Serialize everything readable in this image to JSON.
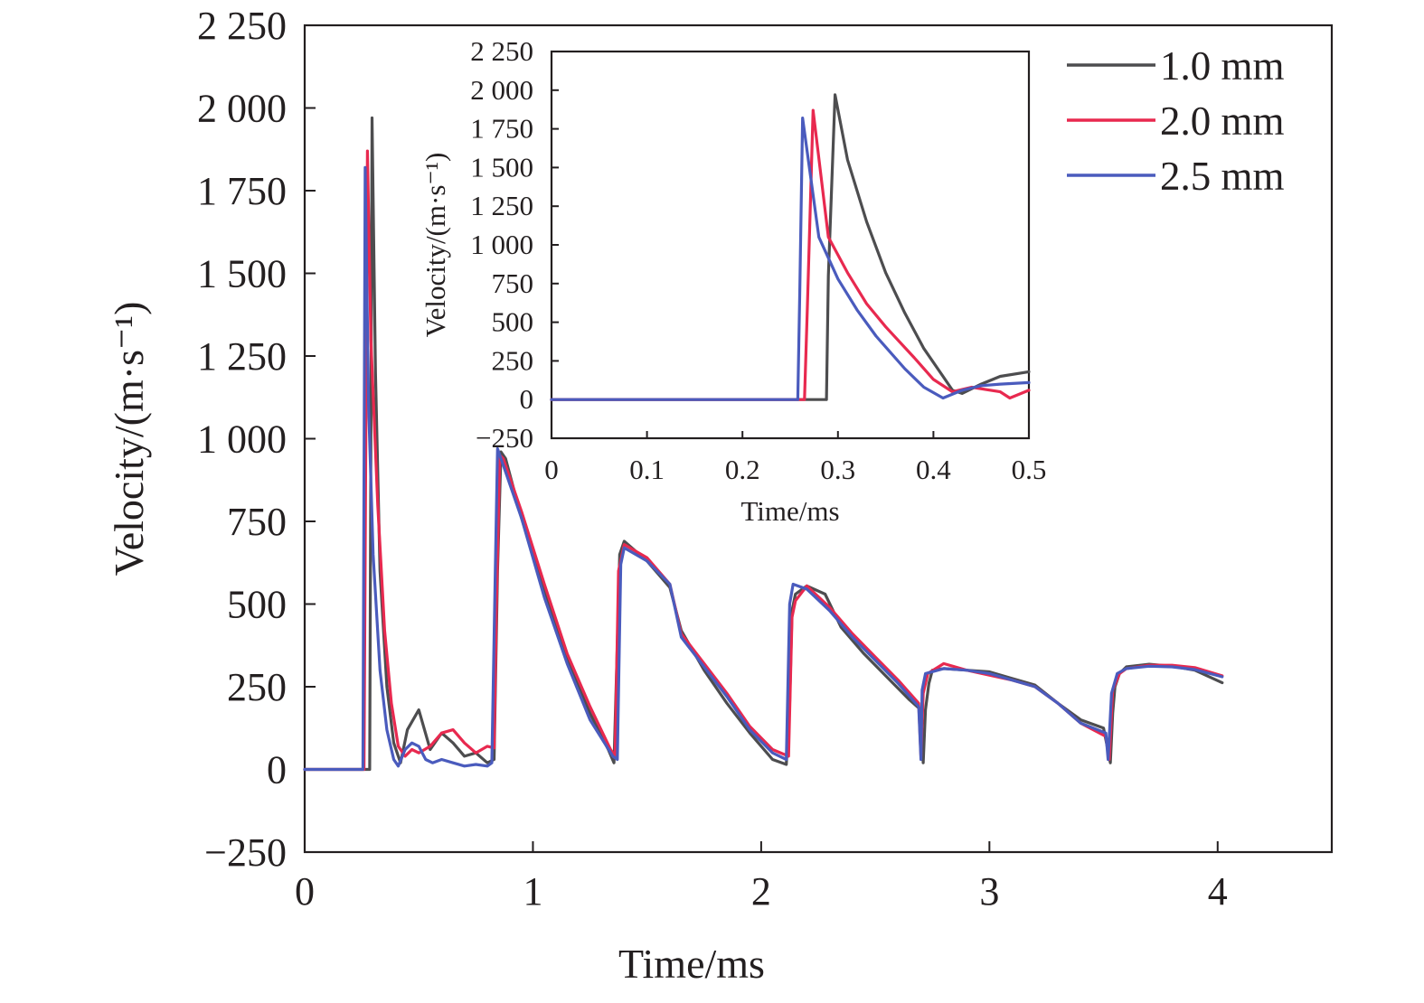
{
  "chart_data": [
    {
      "type": "line",
      "title": "",
      "xlabel": "Time/ms",
      "ylabel": "Velocity/(m·s⁻¹)",
      "xlim": [
        0,
        4.5
      ],
      "ylim": [
        -250,
        2250
      ],
      "xticks": [
        0,
        1,
        2,
        3,
        4
      ],
      "xtick_labels": [
        "0",
        "1",
        "2",
        "3",
        "4"
      ],
      "yticks": [
        -250,
        0,
        250,
        500,
        750,
        1000,
        1250,
        1500,
        1750,
        2000,
        2250
      ],
      "ytick_labels": [
        "−250",
        "0",
        "250",
        "500",
        "750",
        "1 000",
        "1 250",
        "1 500",
        "1 750",
        "2 000",
        "2 250"
      ],
      "grid": false,
      "legend": "top-right",
      "series": [
        {
          "name": "1.0 mm",
          "color": "#4d4d4f",
          "x": [
            0,
            0.27,
            0.285,
            0.295,
            0.31,
            0.33,
            0.36,
            0.39,
            0.42,
            0.45,
            0.5,
            0.55,
            0.6,
            0.65,
            0.7,
            0.75,
            0.8,
            0.83,
            0.845,
            0.86,
            0.88,
            0.95,
            1.05,
            1.15,
            1.25,
            1.33,
            1.355,
            1.37,
            1.38,
            1.4,
            1.5,
            1.6,
            1.65,
            1.75,
            1.85,
            1.95,
            2.05,
            2.11,
            2.125,
            2.135,
            2.15,
            2.2,
            2.28,
            2.35,
            2.45,
            2.55,
            2.65,
            2.7,
            2.71,
            2.72,
            2.735,
            2.75,
            2.8,
            2.9,
            3.0,
            3.1,
            3.2,
            3.3,
            3.4,
            3.5,
            3.53,
            3.54,
            3.55,
            3.57,
            3.6,
            3.7,
            3.8,
            3.9,
            4.02
          ],
          "y": [
            0,
            0,
            0,
            1970,
            1200,
            600,
            250,
            80,
            20,
            120,
            180,
            60,
            110,
            80,
            40,
            50,
            20,
            30,
            600,
            960,
            940,
            760,
            540,
            330,
            170,
            60,
            20,
            380,
            650,
            690,
            630,
            550,
            420,
            300,
            200,
            110,
            30,
            15,
            200,
            480,
            530,
            555,
            530,
            430,
            350,
            280,
            210,
            180,
            20,
            180,
            260,
            300,
            305,
            300,
            295,
            275,
            255,
            200,
            150,
            125,
            20,
            170,
            250,
            290,
            310,
            318,
            312,
            300,
            262
          ]
        },
        {
          "name": "2.0 mm",
          "color": "#e8294f",
          "x": [
            0,
            0.26,
            0.275,
            0.29,
            0.32,
            0.35,
            0.38,
            0.41,
            0.44,
            0.47,
            0.5,
            0.55,
            0.6,
            0.65,
            0.7,
            0.75,
            0.8,
            0.83,
            0.84,
            0.855,
            0.87,
            0.95,
            1.05,
            1.15,
            1.25,
            1.34,
            1.36,
            1.375,
            1.4,
            1.5,
            1.6,
            1.65,
            1.75,
            1.85,
            1.95,
            2.05,
            2.12,
            2.135,
            2.15,
            2.2,
            2.3,
            2.4,
            2.5,
            2.6,
            2.69,
            2.7,
            2.71,
            2.73,
            2.8,
            2.9,
            3.0,
            3.1,
            3.2,
            3.3,
            3.4,
            3.51,
            3.525,
            3.54,
            3.57,
            3.6,
            3.7,
            3.8,
            3.9,
            4.02
          ],
          "y": [
            0,
            0,
            1870,
            1300,
            800,
            420,
            200,
            70,
            40,
            60,
            50,
            70,
            110,
            120,
            80,
            50,
            70,
            65,
            500,
            950,
            940,
            780,
            560,
            350,
            190,
            60,
            40,
            600,
            680,
            640,
            560,
            410,
            320,
            230,
            130,
            60,
            40,
            460,
            510,
            555,
            490,
            410,
            340,
            270,
            200,
            40,
            230,
            290,
            320,
            300,
            285,
            270,
            250,
            200,
            140,
            100,
            30,
            240,
            290,
            305,
            315,
            315,
            308,
            283
          ]
        },
        {
          "name": "2.5 mm",
          "color": "#4a5bbd",
          "x": [
            0,
            0.255,
            0.265,
            0.28,
            0.3,
            0.33,
            0.36,
            0.39,
            0.41,
            0.44,
            0.47,
            0.5,
            0.53,
            0.56,
            0.6,
            0.65,
            0.7,
            0.75,
            0.8,
            0.82,
            0.835,
            0.845,
            0.86,
            0.95,
            1.05,
            1.15,
            1.25,
            1.35,
            1.37,
            1.385,
            1.4,
            1.5,
            1.6,
            1.65,
            1.75,
            1.85,
            1.95,
            2.05,
            2.11,
            2.125,
            2.14,
            2.2,
            2.3,
            2.4,
            2.5,
            2.6,
            2.69,
            2.7,
            2.705,
            2.72,
            2.8,
            2.9,
            3.0,
            3.1,
            3.2,
            3.3,
            3.4,
            3.51,
            3.52,
            3.535,
            3.56,
            3.6,
            3.7,
            3.8,
            3.9,
            4.02
          ],
          "y": [
            0,
            0,
            1820,
            1100,
            650,
            300,
            120,
            30,
            10,
            60,
            80,
            70,
            30,
            20,
            30,
            20,
            10,
            15,
            10,
            20,
            600,
            970,
            940,
            760,
            520,
            320,
            150,
            40,
            30,
            620,
            670,
            630,
            560,
            400,
            310,
            220,
            120,
            50,
            30,
            500,
            560,
            545,
            480,
            400,
            330,
            260,
            190,
            30,
            240,
            290,
            305,
            300,
            290,
            270,
            250,
            200,
            140,
            110,
            30,
            230,
            290,
            305,
            312,
            310,
            302,
            280
          ]
        }
      ]
    },
    {
      "type": "line",
      "title": "",
      "xlabel": "Time/ms",
      "ylabel": "Velocity/(m·s⁻¹)",
      "xlim": [
        0,
        0.5
      ],
      "ylim": [
        -250,
        2250
      ],
      "xticks": [
        0,
        0.1,
        0.2,
        0.3,
        0.4,
        0.5
      ],
      "xtick_labels": [
        "0",
        "0.1",
        "0.2",
        "0.3",
        "0.4",
        "0.5"
      ],
      "yticks": [
        -250,
        0,
        250,
        500,
        750,
        1000,
        1250,
        1500,
        1750,
        2000,
        2250
      ],
      "ytick_labels": [
        "−250",
        "0",
        "250",
        "500",
        "750",
        "1 000",
        "1 250",
        "1 500",
        "1 750",
        "2 000",
        "2 250"
      ],
      "grid": false,
      "series": [
        {
          "name": "1.0 mm",
          "color": "#4d4d4f",
          "x": [
            0,
            0.288,
            0.29,
            0.297,
            0.31,
            0.33,
            0.35,
            0.37,
            0.39,
            0.41,
            0.42,
            0.43,
            0.45,
            0.47,
            0.5
          ],
          "y": [
            0,
            0,
            800,
            1970,
            1550,
            1150,
            820,
            560,
            330,
            150,
            60,
            40,
            100,
            150,
            180
          ]
        },
        {
          "name": "2.0 mm",
          "color": "#e8294f",
          "x": [
            0,
            0.265,
            0.268,
            0.274,
            0.29,
            0.31,
            0.33,
            0.35,
            0.38,
            0.4,
            0.42,
            0.44,
            0.46,
            0.47,
            0.48,
            0.5
          ],
          "y": [
            0,
            0,
            600,
            1870,
            1050,
            820,
            620,
            470,
            270,
            130,
            50,
            80,
            60,
            50,
            10,
            60
          ]
        },
        {
          "name": "2.5 mm",
          "color": "#4a5bbd",
          "x": [
            0,
            0.258,
            0.26,
            0.263,
            0.28,
            0.3,
            0.32,
            0.34,
            0.37,
            0.39,
            0.41,
            0.43,
            0.45,
            0.47,
            0.5
          ],
          "y": [
            0,
            0,
            700,
            1820,
            1050,
            780,
            580,
            410,
            200,
            80,
            10,
            60,
            90,
            100,
            110
          ]
        }
      ]
    }
  ]
}
